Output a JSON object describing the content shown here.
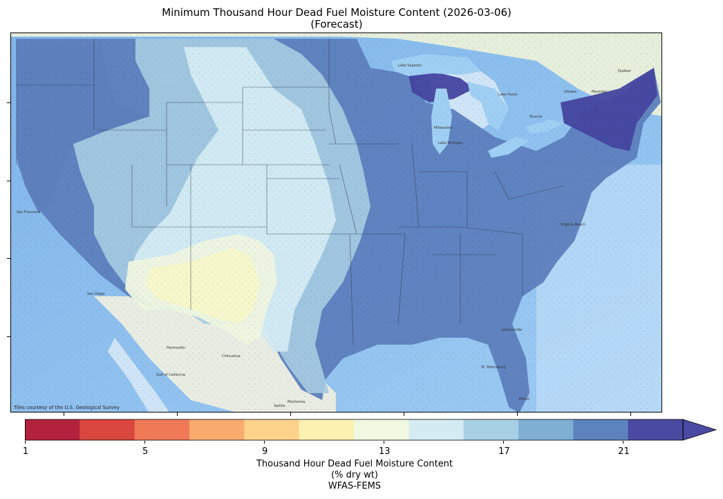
{
  "title_line1": "Minimum Thousand Hour Dead Fuel Moisture Content (2026-03-06)",
  "title_line2": "(Forecast)",
  "map_credit": "Tiles courtesy of the U.S. Geological Survey",
  "colorbar": {
    "label_line1": "Thousand Hour Dead Fuel Moisture Content",
    "label_line2": "(% dry wt)",
    "label_line3": "WFAS-FEMS",
    "tick_labels": [
      "1",
      "5",
      "9",
      "13",
      "17",
      "21"
    ],
    "range": [
      1,
      23
    ],
    "extend": "max",
    "colors": [
      "#b2223e",
      "#d9473f",
      "#f07a58",
      "#f9ab6e",
      "#fdd38c",
      "#fdf1b2",
      "#f0f8e1",
      "#d4ebf2",
      "#a8d0e4",
      "#7fb0d4",
      "#5d83be",
      "#4a4aa3"
    ]
  },
  "map_labels": {
    "lake_superior": "Lake Superior",
    "lake_michigan": "Lake Michigan",
    "lake_huron": "Lake Huron",
    "milwaukee": "Milwaukee",
    "toronto": "Toronto",
    "ottawa": "Ottawa",
    "montreal": "Montréal",
    "quebec": "Québec",
    "san_francisco": "San Francisco",
    "san_diego": "San Diego",
    "hermosillo": "Hermosillo",
    "chihuahua": "Chihuahua",
    "monterrey": "Monterrey",
    "saltillo": "Saltillo",
    "gulf_of_california": "Gulf of California",
    "virginia_beach": "Virginia Beach",
    "jacksonville": "Jacksonville",
    "st_petersburg": "St. Petersburg",
    "miami": "Miami"
  }
}
